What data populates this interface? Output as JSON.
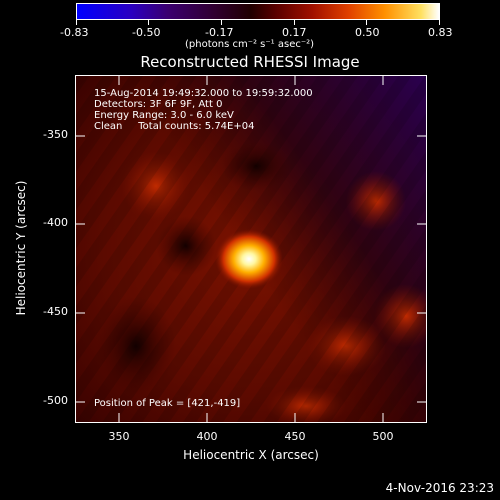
{
  "colorbar": {
    "tick_labels": [
      "-0.83",
      "-0.50",
      "-0.17",
      "0.17",
      "0.50",
      "0.83"
    ],
    "unit_label": "(photons cm⁻² s⁻¹ asec⁻²)"
  },
  "title": "Reconstructed RHESSI Image",
  "info": {
    "line1": "15-Aug-2014 19:49:32.000 to 19:59:32.000",
    "line2": "Detectors: 3F 6F 9F, Att 0",
    "line3": "Energy Range: 3.0 - 6.0 keV",
    "line4": "Clean     Total counts: 5.74E+04"
  },
  "peak_text": "Position of Peak = [421,-419]",
  "x_axis": {
    "label": "Heliocentric X (arcsec)",
    "ticks": [
      "350",
      "400",
      "450",
      "500"
    ]
  },
  "y_axis": {
    "label": "Heliocentric Y (arcsec)",
    "ticks": [
      "-350",
      "-400",
      "-450",
      "-500"
    ]
  },
  "footer_date": "4-Nov-2016 23:23",
  "colors": {
    "background": "#000000",
    "frame": "#ffffff"
  }
}
